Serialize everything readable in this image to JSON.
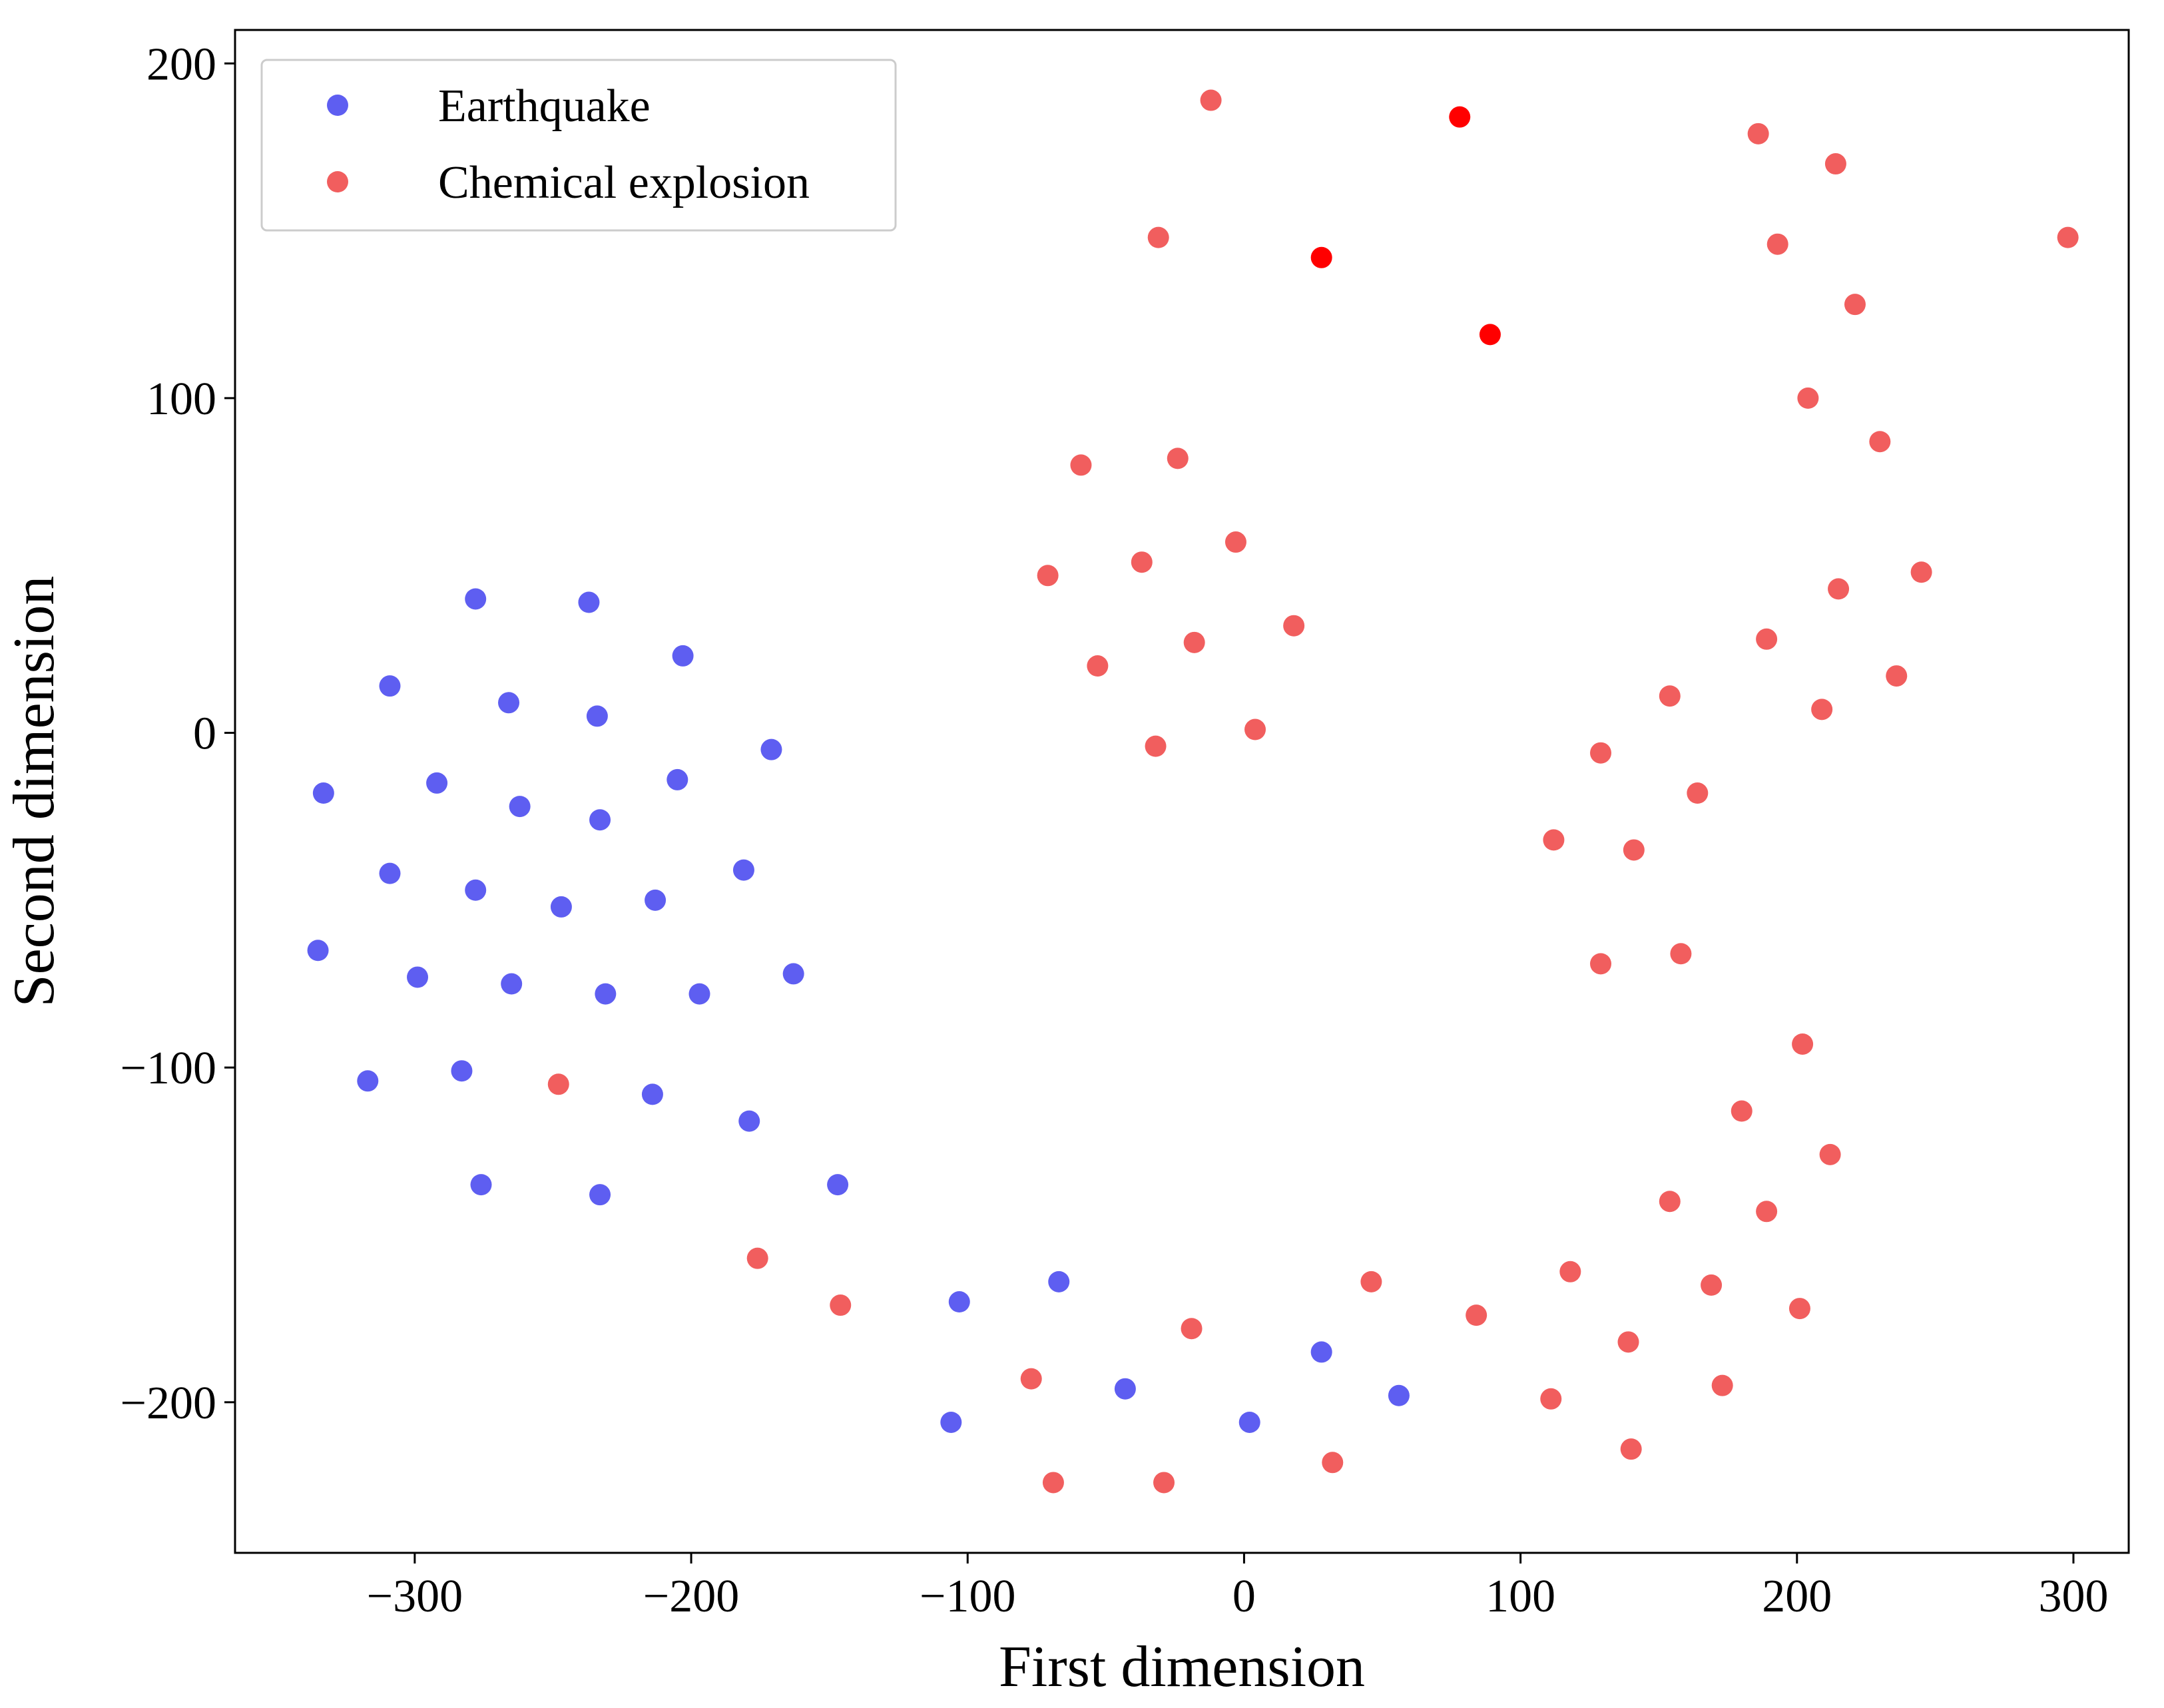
{
  "chart_data": {
    "type": "scatter",
    "title": "",
    "xlabel": "First dimension",
    "ylabel": "Second dimension",
    "xlim": [
      -365,
      320
    ],
    "ylim": [
      -245,
      210
    ],
    "xticks": [
      -300,
      -200,
      -100,
      0,
      100,
      200,
      300
    ],
    "yticks": [
      -200,
      -100,
      0,
      100,
      200
    ],
    "xtick_labels": [
      "−300",
      "−200",
      "−100",
      "0",
      "100",
      "200",
      "300"
    ],
    "ytick_labels": [
      "−200",
      "−100",
      "0",
      "100",
      "200"
    ],
    "grid": false,
    "legend_position": "upper-left",
    "series": [
      {
        "name": "Earthquake",
        "color": "#5050f0",
        "points": [
          [
            -278,
            40
          ],
          [
            -237,
            39
          ],
          [
            -203,
            23
          ],
          [
            -309,
            14
          ],
          [
            -266,
            9
          ],
          [
            -234,
            5
          ],
          [
            -171,
            -5
          ],
          [
            -333,
            -18
          ],
          [
            -292,
            -15
          ],
          [
            -262,
            -22
          ],
          [
            -233,
            -26
          ],
          [
            -205,
            -14
          ],
          [
            -309,
            -42
          ],
          [
            -278,
            -47
          ],
          [
            -247,
            -52
          ],
          [
            -213,
            -50
          ],
          [
            -181,
            -41
          ],
          [
            -335,
            -65
          ],
          [
            -299,
            -73
          ],
          [
            -265,
            -75
          ],
          [
            -231,
            -78
          ],
          [
            -197,
            -78
          ],
          [
            -163,
            -72
          ],
          [
            -317,
            -104
          ],
          [
            -283,
            -101
          ],
          [
            -214,
            -108
          ],
          [
            -179,
            -116
          ],
          [
            -276,
            -135
          ],
          [
            -233,
            -138
          ],
          [
            -147,
            -135
          ],
          [
            -103,
            -170
          ],
          [
            -67,
            -164
          ],
          [
            -106,
            -206
          ],
          [
            -43,
            -196
          ],
          [
            2,
            -206
          ],
          [
            28,
            -185
          ],
          [
            56,
            -198
          ]
        ]
      },
      {
        "name": "Chemical explosion",
        "color": "#f05050",
        "points": [
          [
            -12,
            189
          ],
          [
            -31,
            148
          ],
          [
            -59,
            80
          ],
          [
            -24,
            82
          ],
          [
            -3,
            57
          ],
          [
            -71,
            47
          ],
          [
            -37,
            51
          ],
          [
            -18,
            27
          ],
          [
            18,
            32
          ],
          [
            -53,
            20
          ],
          [
            -32,
            -4
          ],
          [
            4,
            1
          ],
          [
            186,
            179
          ],
          [
            214,
            170
          ],
          [
            193,
            146
          ],
          [
            221,
            128
          ],
          [
            204,
            100
          ],
          [
            298,
            148
          ],
          [
            230,
            87
          ],
          [
            245,
            48
          ],
          [
            215,
            43
          ],
          [
            189,
            28
          ],
          [
            154,
            11
          ],
          [
            209,
            7
          ],
          [
            236,
            17
          ],
          [
            129,
            -6
          ],
          [
            164,
            -18
          ],
          [
            112,
            -32
          ],
          [
            141,
            -35
          ],
          [
            129,
            -69
          ],
          [
            158,
            -66
          ],
          [
            202,
            -93
          ],
          [
            180,
            -113
          ],
          [
            212,
            -126
          ],
          [
            154,
            -140
          ],
          [
            189,
            -143
          ],
          [
            -176,
            -157
          ],
          [
            -146,
            -171
          ],
          [
            -19,
            -178
          ],
          [
            46,
            -164
          ],
          [
            84,
            -174
          ],
          [
            118,
            -161
          ],
          [
            139,
            -182
          ],
          [
            169,
            -165
          ],
          [
            201,
            -172
          ],
          [
            -77,
            -193
          ],
          [
            111,
            -199
          ],
          [
            173,
            -195
          ],
          [
            -69,
            -224
          ],
          [
            -29,
            -224
          ],
          [
            32,
            -218
          ],
          [
            140,
            -214
          ],
          [
            -248,
            -105
          ]
        ]
      },
      {
        "name": "",
        "color": "#ff0000",
        "legend": false,
        "points": [
          [
            78,
            184
          ],
          [
            28,
            142
          ],
          [
            89,
            119
          ]
        ]
      }
    ]
  }
}
